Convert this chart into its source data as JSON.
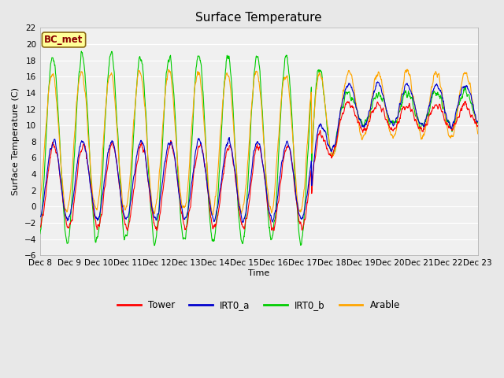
{
  "title": "Surface Temperature",
  "ylabel": "Surface Temperature (C)",
  "xlabel": "Time",
  "annotation_text": "BC_met",
  "annotation_color": "#8B0000",
  "annotation_bg": "#FFFF99",
  "ylim": [
    -6,
    22
  ],
  "yticks": [
    -6,
    -4,
    -2,
    0,
    2,
    4,
    6,
    8,
    10,
    12,
    14,
    16,
    18,
    20,
    22
  ],
  "colors": {
    "Tower": "#FF0000",
    "IRT0_a": "#0000CD",
    "IRT0_b": "#00CC00",
    "Arable": "#FFA500"
  },
  "bg_color": "#E8E8E8",
  "plot_bg": "#F0F0F0",
  "figsize": [
    6.4,
    4.8
  ],
  "dpi": 100
}
